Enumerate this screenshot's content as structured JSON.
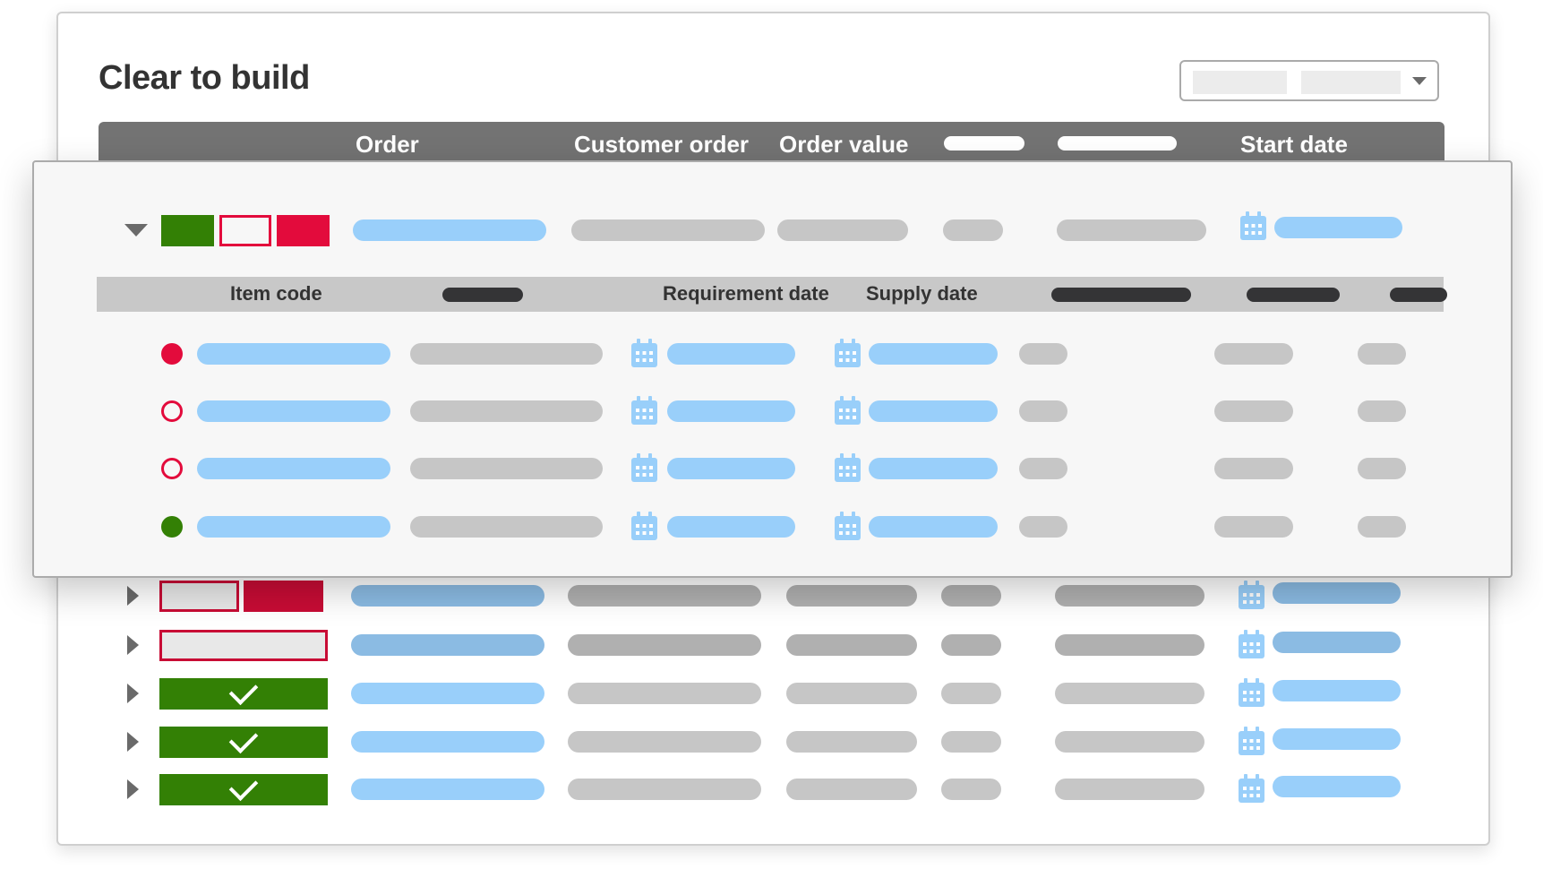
{
  "page": {
    "title": "Clear to build"
  },
  "header": {
    "columns": [
      "Order",
      "Customer order",
      "Order value",
      "Start date"
    ]
  },
  "subheader": {
    "columns": [
      "Item code",
      "Requirement date",
      "Supply date"
    ]
  },
  "colors": {
    "green": "#338005",
    "red": "#e30b3c",
    "header": "#737373",
    "subheader": "#c8c8c8",
    "link_blue": "#99cffa",
    "placeholder_gray": "#c6c6c6"
  },
  "expanded_order": {
    "status_segments": [
      "complete",
      "outline",
      "missing"
    ],
    "expanded": true
  },
  "items": [
    {
      "status": "filled-red"
    },
    {
      "status": "outline-red"
    },
    {
      "status": "outline-red"
    },
    {
      "status": "filled-green"
    }
  ],
  "orders": [
    {
      "status": "partial"
    },
    {
      "status": "outline"
    },
    {
      "status": "clear"
    },
    {
      "status": "clear"
    },
    {
      "status": "clear"
    }
  ],
  "icons": {
    "calendar": "calendar-icon",
    "expand": "caret-right-icon",
    "collapse": "caret-down-icon",
    "check": "check-icon",
    "dropdown": "caret-down-icon"
  }
}
